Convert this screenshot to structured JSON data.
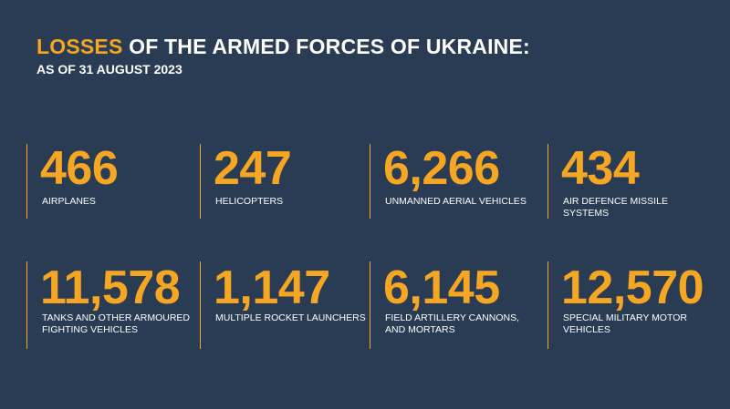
{
  "header": {
    "title_accent": "LOSSES",
    "title_rest": " OF THE ARMED FORCES OF UKRAINE:",
    "subtitle": "AS OF 31 AUGUST 2023"
  },
  "colors": {
    "background": "#293c53",
    "accent": "#f5a623",
    "text": "#ffffff"
  },
  "stats": [
    {
      "value": "466",
      "label_line1": "AIRPLANES",
      "label_line2": ""
    },
    {
      "value": "247",
      "label_line1": "HELICOPTERS",
      "label_line2": ""
    },
    {
      "value": "6,266",
      "label_line1": "UNMANNED AERIAL VEHICLES",
      "label_line2": ""
    },
    {
      "value": "434",
      "label_line1": "AIR DEFENCE MISSILE",
      "label_line2": "SYSTEMS"
    },
    {
      "value": "11,578",
      "label_line1": "TANKS AND OTHER ARMOURED",
      "label_line2": "FIGHTING VEHICLES"
    },
    {
      "value": "1,147",
      "label_line1": "MULTIPLE ROCKET LAUNCHERS",
      "label_line2": ""
    },
    {
      "value": "6,145",
      "label_line1": "FIELD ARTILLERY CANNONS,",
      "label_line2": "AND MORTARS"
    },
    {
      "value": "12,570",
      "label_line1": "SPECIAL MILITARY MOTOR",
      "label_line2": "VEHICLES"
    }
  ]
}
